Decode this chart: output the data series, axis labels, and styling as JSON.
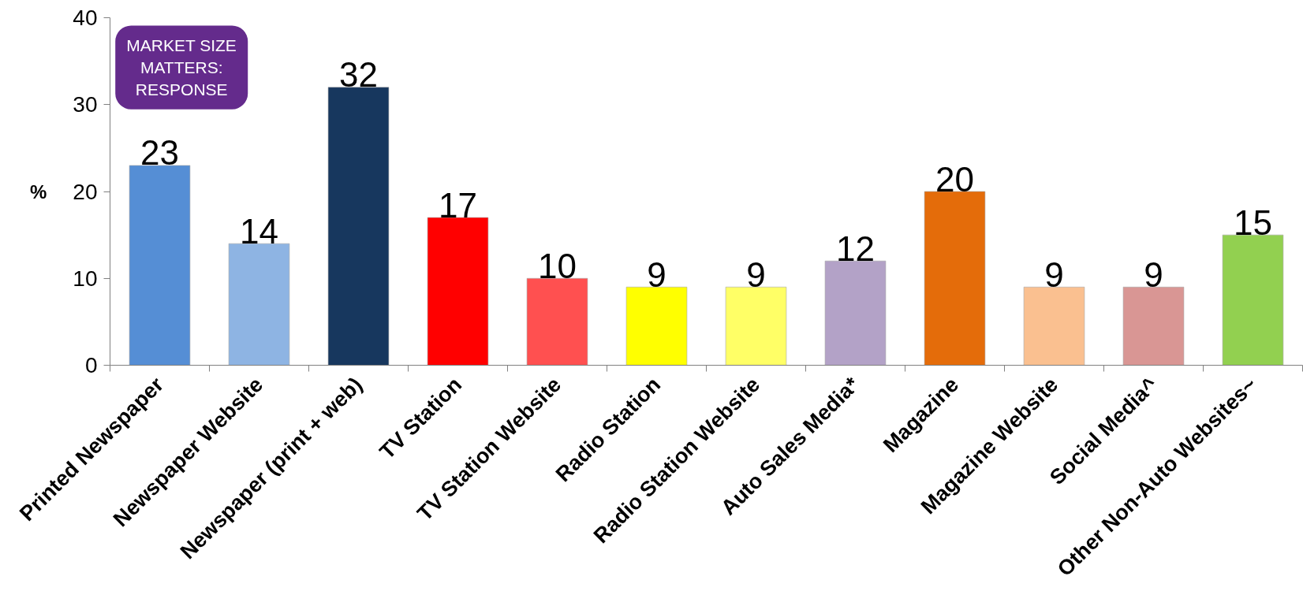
{
  "chart_data": {
    "type": "bar",
    "ylabel": "%",
    "annotations": [
      "MARKET SIZE MATTERS: RESPONSE"
    ],
    "categories": [
      "Printed Newspaper",
      "Newspaper Website",
      "Newspaper (print + web)",
      "TV Station",
      "TV Station Website",
      "Radio Station",
      "Radio Station Website",
      "Auto Sales Media*",
      "Magazine",
      "Magazine Website",
      "Social Media^",
      "Other Non-Auto Websites~"
    ],
    "values": [
      23,
      14,
      32,
      17,
      10,
      9,
      9,
      12,
      20,
      9,
      9,
      15
    ],
    "colors": [
      "#558ed5",
      "#8eb4e3",
      "#17375e",
      "#ff0000",
      "#ff5050",
      "#ffff00",
      "#ffff66",
      "#b3a2c7",
      "#e46c0a",
      "#fac090",
      "#d99694",
      "#92d050"
    ],
    "ylim": [
      0,
      40
    ],
    "yticks": [
      0,
      10,
      20,
      30,
      40
    ],
    "data_labels": true
  }
}
